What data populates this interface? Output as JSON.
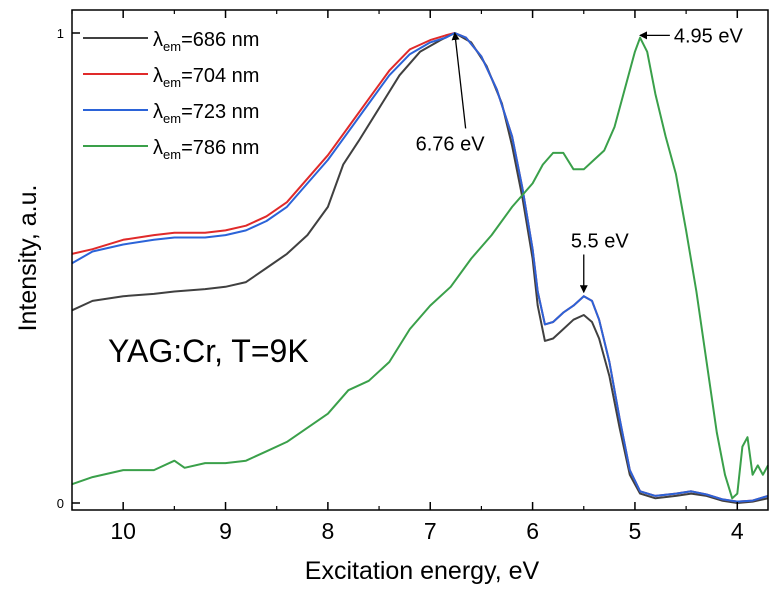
{
  "chart_data": {
    "type": "line",
    "xlabel": "Excitation energy, eV",
    "ylabel": "Intensity, a.u.",
    "xlim": [
      10.5,
      3.7
    ],
    "ylim": [
      0,
      1
    ],
    "x_reversed": true,
    "x_ticks": [
      "10",
      "9",
      "8",
      "7",
      "6",
      "5",
      "4"
    ],
    "y_ticks": [
      "0",
      "1"
    ],
    "grid": false,
    "legend_position": "top-left",
    "legend_prefix": "λ",
    "legend_sub": "em",
    "series": [
      {
        "name": "=686 nm",
        "color": "#404040",
        "points": [
          [
            10.5,
            0.41
          ],
          [
            10.3,
            0.43
          ],
          [
            10.0,
            0.44
          ],
          [
            9.7,
            0.445
          ],
          [
            9.5,
            0.45
          ],
          [
            9.2,
            0.455
          ],
          [
            9.0,
            0.46
          ],
          [
            8.8,
            0.47
          ],
          [
            8.6,
            0.5
          ],
          [
            8.4,
            0.53
          ],
          [
            8.2,
            0.57
          ],
          [
            8.0,
            0.63
          ],
          [
            7.85,
            0.72
          ],
          [
            7.7,
            0.77
          ],
          [
            7.5,
            0.84
          ],
          [
            7.3,
            0.91
          ],
          [
            7.1,
            0.96
          ],
          [
            6.9,
            0.985
          ],
          [
            6.76,
            1.0
          ],
          [
            6.6,
            0.98
          ],
          [
            6.45,
            0.93
          ],
          [
            6.3,
            0.85
          ],
          [
            6.2,
            0.76
          ],
          [
            6.1,
            0.65
          ],
          [
            6.0,
            0.52
          ],
          [
            5.95,
            0.42
          ],
          [
            5.88,
            0.345
          ],
          [
            5.8,
            0.35
          ],
          [
            5.7,
            0.37
          ],
          [
            5.6,
            0.39
          ],
          [
            5.5,
            0.4
          ],
          [
            5.42,
            0.385
          ],
          [
            5.35,
            0.35
          ],
          [
            5.25,
            0.27
          ],
          [
            5.15,
            0.16
          ],
          [
            5.05,
            0.06
          ],
          [
            4.95,
            0.02
          ],
          [
            4.8,
            0.01
          ],
          [
            4.6,
            0.015
          ],
          [
            4.45,
            0.02
          ],
          [
            4.3,
            0.015
          ],
          [
            4.15,
            0.005
          ],
          [
            4.0,
            0.0
          ],
          [
            3.85,
            0.003
          ],
          [
            3.7,
            0.01
          ]
        ]
      },
      {
        "name": "=704 nm",
        "color": "#e02a2a",
        "points": [
          [
            10.5,
            0.53
          ],
          [
            10.3,
            0.54
          ],
          [
            10.0,
            0.56
          ],
          [
            9.7,
            0.57
          ],
          [
            9.5,
            0.575
          ],
          [
            9.2,
            0.575
          ],
          [
            9.0,
            0.58
          ],
          [
            8.8,
            0.59
          ],
          [
            8.6,
            0.61
          ],
          [
            8.4,
            0.64
          ],
          [
            8.2,
            0.69
          ],
          [
            8.0,
            0.74
          ],
          [
            7.8,
            0.8
          ],
          [
            7.6,
            0.86
          ],
          [
            7.4,
            0.92
          ],
          [
            7.2,
            0.965
          ],
          [
            7.0,
            0.985
          ],
          [
            6.85,
            0.995
          ],
          [
            6.76,
            1.0
          ],
          [
            6.65,
            0.99
          ],
          [
            6.5,
            0.95
          ],
          [
            6.35,
            0.88
          ],
          [
            6.2,
            0.78
          ],
          [
            6.1,
            0.67
          ],
          [
            6.0,
            0.54
          ],
          [
            5.95,
            0.45
          ],
          [
            5.88,
            0.38
          ],
          [
            5.8,
            0.385
          ],
          [
            5.7,
            0.405
          ],
          [
            5.6,
            0.42
          ],
          [
            5.5,
            0.44
          ],
          [
            5.42,
            0.43
          ],
          [
            5.35,
            0.39
          ],
          [
            5.25,
            0.3
          ],
          [
            5.15,
            0.18
          ],
          [
            5.05,
            0.07
          ],
          [
            4.95,
            0.025
          ],
          [
            4.8,
            0.015
          ],
          [
            4.6,
            0.02
          ],
          [
            4.45,
            0.025
          ],
          [
            4.3,
            0.018
          ],
          [
            4.15,
            0.008
          ],
          [
            4.0,
            0.003
          ],
          [
            3.85,
            0.005
          ],
          [
            3.7,
            0.015
          ]
        ]
      },
      {
        "name": "=723 nm",
        "color": "#2b63d8",
        "points": [
          [
            10.5,
            0.51
          ],
          [
            10.3,
            0.535
          ],
          [
            10.0,
            0.55
          ],
          [
            9.7,
            0.56
          ],
          [
            9.5,
            0.565
          ],
          [
            9.2,
            0.565
          ],
          [
            9.0,
            0.57
          ],
          [
            8.8,
            0.58
          ],
          [
            8.6,
            0.6
          ],
          [
            8.4,
            0.63
          ],
          [
            8.2,
            0.68
          ],
          [
            8.0,
            0.73
          ],
          [
            7.8,
            0.79
          ],
          [
            7.6,
            0.85
          ],
          [
            7.4,
            0.91
          ],
          [
            7.2,
            0.955
          ],
          [
            7.0,
            0.98
          ],
          [
            6.85,
            0.99
          ],
          [
            6.76,
            1.0
          ],
          [
            6.65,
            0.99
          ],
          [
            6.5,
            0.95
          ],
          [
            6.35,
            0.88
          ],
          [
            6.2,
            0.78
          ],
          [
            6.1,
            0.67
          ],
          [
            6.0,
            0.54
          ],
          [
            5.95,
            0.45
          ],
          [
            5.88,
            0.38
          ],
          [
            5.8,
            0.385
          ],
          [
            5.7,
            0.405
          ],
          [
            5.6,
            0.42
          ],
          [
            5.5,
            0.44
          ],
          [
            5.42,
            0.43
          ],
          [
            5.35,
            0.39
          ],
          [
            5.25,
            0.3
          ],
          [
            5.15,
            0.18
          ],
          [
            5.05,
            0.07
          ],
          [
            4.95,
            0.025
          ],
          [
            4.8,
            0.015
          ],
          [
            4.6,
            0.02
          ],
          [
            4.45,
            0.025
          ],
          [
            4.3,
            0.018
          ],
          [
            4.15,
            0.008
          ],
          [
            4.0,
            0.003
          ],
          [
            3.85,
            0.005
          ],
          [
            3.7,
            0.015
          ]
        ]
      },
      {
        "name": "=786 nm",
        "color": "#3aa04a",
        "points": [
          [
            10.5,
            0.04
          ],
          [
            10.3,
            0.055
          ],
          [
            10.0,
            0.07
          ],
          [
            9.7,
            0.07
          ],
          [
            9.5,
            0.09
          ],
          [
            9.4,
            0.075
          ],
          [
            9.2,
            0.085
          ],
          [
            9.0,
            0.085
          ],
          [
            8.8,
            0.09
          ],
          [
            8.6,
            0.11
          ],
          [
            8.4,
            0.13
          ],
          [
            8.2,
            0.16
          ],
          [
            8.0,
            0.19
          ],
          [
            7.8,
            0.24
          ],
          [
            7.6,
            0.26
          ],
          [
            7.4,
            0.3
          ],
          [
            7.2,
            0.37
          ],
          [
            7.0,
            0.42
          ],
          [
            6.8,
            0.46
          ],
          [
            6.6,
            0.52
          ],
          [
            6.4,
            0.57
          ],
          [
            6.2,
            0.63
          ],
          [
            6.0,
            0.68
          ],
          [
            5.9,
            0.72
          ],
          [
            5.8,
            0.745
          ],
          [
            5.7,
            0.745
          ],
          [
            5.6,
            0.71
          ],
          [
            5.5,
            0.71
          ],
          [
            5.4,
            0.73
          ],
          [
            5.3,
            0.75
          ],
          [
            5.2,
            0.8
          ],
          [
            5.1,
            0.88
          ],
          [
            5.0,
            0.96
          ],
          [
            4.95,
            0.99
          ],
          [
            4.88,
            0.96
          ],
          [
            4.8,
            0.87
          ],
          [
            4.7,
            0.78
          ],
          [
            4.6,
            0.7
          ],
          [
            4.5,
            0.58
          ],
          [
            4.4,
            0.45
          ],
          [
            4.3,
            0.3
          ],
          [
            4.2,
            0.15
          ],
          [
            4.12,
            0.06
          ],
          [
            4.05,
            0.01
          ],
          [
            4.0,
            0.02
          ],
          [
            3.95,
            0.12
          ],
          [
            3.9,
            0.14
          ],
          [
            3.85,
            0.06
          ],
          [
            3.8,
            0.08
          ],
          [
            3.75,
            0.06
          ],
          [
            3.7,
            0.08
          ]
        ]
      }
    ],
    "annotations": [
      {
        "text": "6.76 eV",
        "x": 6.76,
        "y": 1.0,
        "label_x": 6.83,
        "label_y": 0.78
      },
      {
        "text": "4.95 eV",
        "x": 4.95,
        "y": 0.995,
        "label_x": 4.6,
        "label_y": 0.995
      },
      {
        "text": "5.5 eV",
        "x": 5.5,
        "y": 0.44,
        "label_x": 5.5,
        "label_y": 0.55
      }
    ],
    "inset_label": "YAG:Cr, T=9K"
  }
}
